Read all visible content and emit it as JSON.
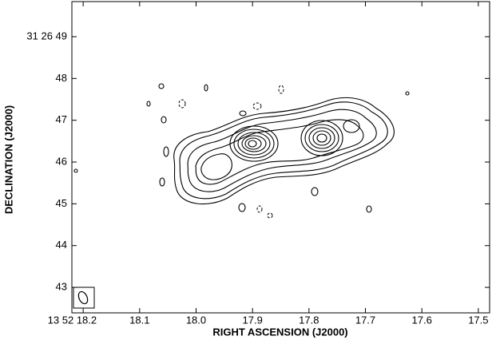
{
  "chart_data": {
    "type": "contour",
    "xlabel": "RIGHT ASCENSION (J2000)",
    "ylabel": "DECLINATION (J2000)",
    "xlim": [
      18.22,
      17.48
    ],
    "ylim": [
      42.39,
      49.84
    ],
    "xticks": [
      {
        "value": 18.2,
        "label": "13 52 18.2"
      },
      {
        "value": 18.1,
        "label": "18.1"
      },
      {
        "value": 18.0,
        "label": "18.0"
      },
      {
        "value": 17.9,
        "label": "17.9"
      },
      {
        "value": 17.8,
        "label": "17.8"
      },
      {
        "value": 17.7,
        "label": "17.7"
      },
      {
        "value": 17.6,
        "label": "17.6"
      },
      {
        "value": 17.5,
        "label": "17.5"
      }
    ],
    "yticks": [
      {
        "value": 49,
        "label": "31 26 49"
      },
      48,
      47,
      46,
      45,
      44,
      43
    ]
  }
}
